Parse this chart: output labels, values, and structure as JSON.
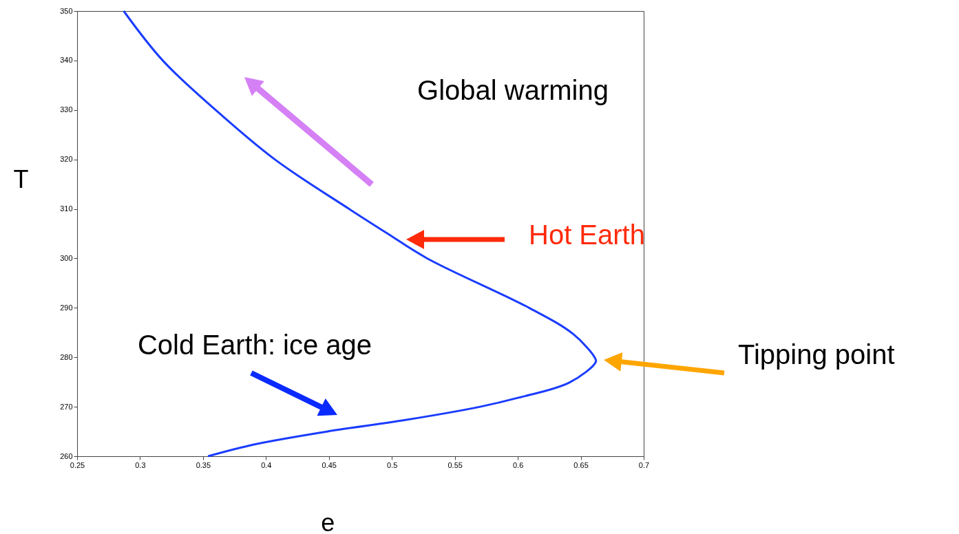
{
  "chart_data": {
    "type": "line",
    "xlabel": "e",
    "ylabel": "T",
    "x": [
      0.287,
      0.318,
      0.36,
      0.407,
      0.466,
      0.496,
      0.528,
      0.609,
      0.644,
      0.661,
      0.662,
      0.641,
      0.6,
      0.57,
      0.51,
      0.451,
      0.391,
      0.354
    ],
    "series": [
      {
        "color": "#1a3cff",
        "values": [
          350,
          340,
          330,
          320,
          310,
          305.1,
          300,
          290,
          284.7,
          280,
          279.1,
          274.9,
          271.8,
          270,
          267.3,
          265.1,
          262.4,
          260
        ]
      }
    ],
    "xlim": [
      0.25,
      0.7
    ],
    "xticks": [
      0.25,
      0.3,
      0.35,
      0.4,
      0.45,
      0.5,
      0.55,
      0.6,
      0.65,
      0.7
    ],
    "ylim": [
      260,
      350
    ],
    "yticks": [
      260,
      270,
      280,
      290,
      300,
      310,
      320,
      330,
      340,
      350
    ],
    "grid": false,
    "marker": "none",
    "line_style": "solid",
    "annotations": [
      "Global warming",
      "Hot Earth",
      "Tipping point",
      "Cold Earth: ice age"
    ]
  }
}
